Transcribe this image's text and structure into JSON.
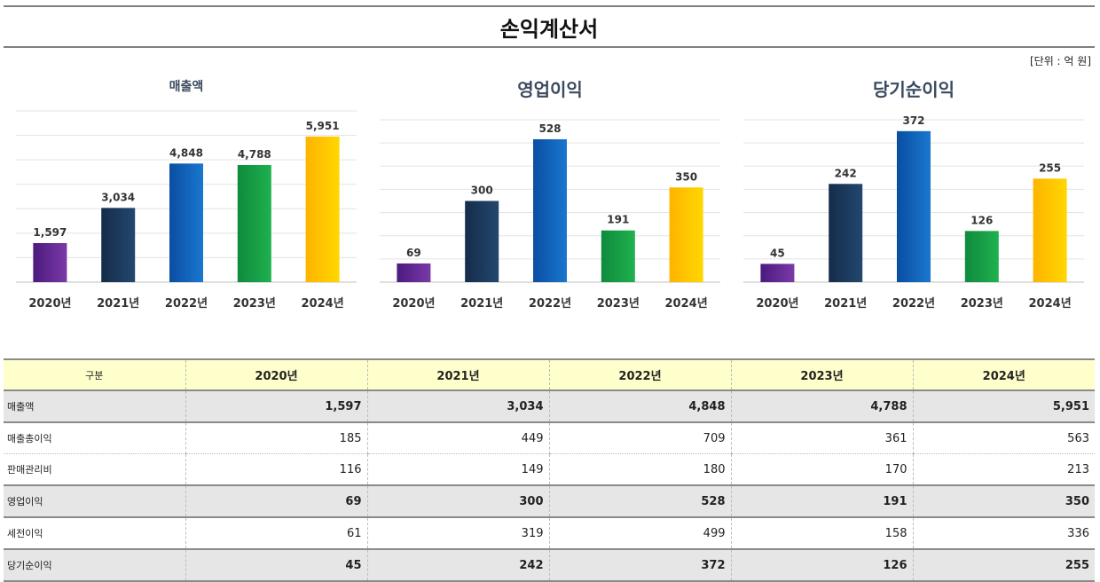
{
  "title": "손익계산서",
  "unit_label": "[단위 : 억 원]",
  "chart_data": [
    {
      "type": "bar",
      "title": "매출액",
      "categories": [
        "2020년",
        "2021년",
        "2022년",
        "2023년",
        "2024년"
      ],
      "values": [
        1597,
        3034,
        4848,
        4788,
        5951
      ],
      "value_labels": [
        "1,597",
        "3,034",
        "4,848",
        "4,788",
        "5,951"
      ],
      "ylim": [
        0,
        7000
      ],
      "grid": true
    },
    {
      "type": "bar",
      "title": "영업이익",
      "categories": [
        "2020년",
        "2021년",
        "2022년",
        "2023년",
        "2024년"
      ],
      "values": [
        69,
        300,
        528,
        191,
        350
      ],
      "value_labels": [
        "69",
        "300",
        "528",
        "191",
        "350"
      ],
      "ylim": [
        0,
        600
      ],
      "grid": true
    },
    {
      "type": "bar",
      "title": "당기순이익",
      "categories": [
        "2020년",
        "2021년",
        "2022년",
        "2023년",
        "2024년"
      ],
      "values": [
        45,
        242,
        372,
        126,
        255
      ],
      "value_labels": [
        "45",
        "242",
        "372",
        "126",
        "255"
      ],
      "ylim": [
        0,
        400
      ],
      "grid": true
    }
  ],
  "bar_colors": [
    [
      "#4b1a7d",
      "#7a3aa8"
    ],
    [
      "#152c4a",
      "#23476f"
    ],
    [
      "#0a4ea3",
      "#1a77cf"
    ],
    [
      "#0f8a3c",
      "#1fb14f"
    ],
    [
      "#ffb300",
      "#ffd700"
    ]
  ],
  "table": {
    "header": [
      "구분",
      "2020년",
      "2021년",
      "2022년",
      "2023년",
      "2024년"
    ],
    "rows": [
      {
        "label": "매출액",
        "values": [
          "1,597",
          "3,034",
          "4,848",
          "4,788",
          "5,951"
        ],
        "highlight": true
      },
      {
        "label": "매출총이익",
        "values": [
          "185",
          "449",
          "709",
          "361",
          "563"
        ],
        "highlight": false
      },
      {
        "label": "판매관리비",
        "values": [
          "116",
          "149",
          "180",
          "170",
          "213"
        ],
        "highlight": false
      },
      {
        "label": "영업이익",
        "values": [
          "69",
          "300",
          "528",
          "191",
          "350"
        ],
        "highlight": true
      },
      {
        "label": "세전이익",
        "values": [
          "61",
          "319",
          "499",
          "158",
          "336"
        ],
        "highlight": false
      },
      {
        "label": "당기순이익",
        "values": [
          "45",
          "242",
          "372",
          "126",
          "255"
        ],
        "highlight": true
      }
    ]
  }
}
